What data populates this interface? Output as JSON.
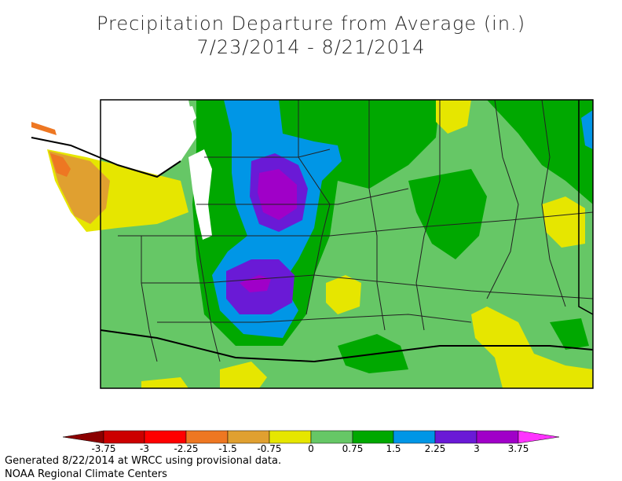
{
  "title": "Precipitation Departure from Average (in.)",
  "date_range": "7/23/2014 - 8/21/2014",
  "legend": {
    "labels": [
      "-3.75",
      "-3",
      "-2.25",
      "-1.5",
      "-0.75",
      "0",
      "0.75",
      "1.5",
      "2.25",
      "3",
      "3.75"
    ],
    "colors": [
      "#8b0000",
      "#cc0000",
      "#ff0000",
      "#ee7722",
      "#e0a030",
      "#e6e600",
      "#66c766",
      "#00a800",
      "#0096e6",
      "#6a1ad6",
      "#a000c8",
      "#ff33ff"
    ]
  },
  "footer": {
    "line1": "Generated 8/22/2014 at WRCC using provisional data.",
    "line2": "NOAA Regional Climate Centers"
  }
}
